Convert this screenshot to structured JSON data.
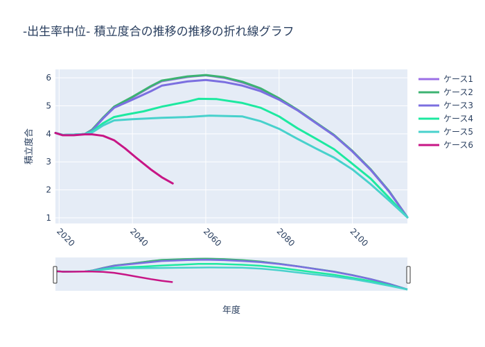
{
  "chart_data": {
    "type": "line",
    "title": "-出生率中位- 積立度合の推移の推移の折れ線グラフ",
    "xlabel": "年度",
    "ylabel": "積立度合",
    "xlim": [
      2019,
      2115
    ],
    "ylim": [
      0.8,
      6.3
    ],
    "xticks": [
      2020,
      2040,
      2060,
      2080,
      2100
    ],
    "yticks": [
      1,
      2,
      3,
      4,
      5,
      6
    ],
    "grid": true,
    "legend_position": "right",
    "range_slider": true,
    "series": [
      {
        "name": "ケース1",
        "color": "#9b6fe6",
        "points": [
          [
            2019,
            4.03
          ],
          [
            2021,
            3.96
          ],
          [
            2024,
            3.97
          ],
          [
            2027,
            3.99
          ],
          [
            2029,
            4.13
          ],
          [
            2032,
            4.55
          ],
          [
            2035,
            4.95
          ],
          [
            2040,
            5.3
          ],
          [
            2045,
            5.68
          ],
          [
            2048,
            5.88
          ],
          [
            2055,
            6.03
          ],
          [
            2060,
            6.09
          ],
          [
            2065,
            6.0
          ],
          [
            2070,
            5.83
          ],
          [
            2075,
            5.6
          ],
          [
            2080,
            5.25
          ],
          [
            2085,
            4.85
          ],
          [
            2090,
            4.4
          ],
          [
            2095,
            3.95
          ],
          [
            2100,
            3.38
          ],
          [
            2105,
            2.72
          ],
          [
            2110,
            1.95
          ],
          [
            2115,
            1.02
          ]
        ]
      },
      {
        "name": "ケース2",
        "color": "#3cb371",
        "points": [
          [
            2019,
            4.03
          ],
          [
            2021,
            3.96
          ],
          [
            2024,
            3.97
          ],
          [
            2027,
            3.99
          ],
          [
            2029,
            4.15
          ],
          [
            2032,
            4.58
          ],
          [
            2035,
            4.97
          ],
          [
            2040,
            5.32
          ],
          [
            2045,
            5.7
          ],
          [
            2048,
            5.9
          ],
          [
            2055,
            6.05
          ],
          [
            2060,
            6.1
          ],
          [
            2065,
            6.02
          ],
          [
            2070,
            5.86
          ],
          [
            2075,
            5.62
          ],
          [
            2080,
            5.27
          ],
          [
            2085,
            4.86
          ],
          [
            2090,
            4.41
          ],
          [
            2095,
            3.96
          ],
          [
            2100,
            3.39
          ],
          [
            2105,
            2.73
          ],
          [
            2110,
            1.96
          ],
          [
            2115,
            1.02
          ]
        ]
      },
      {
        "name": "ケース3",
        "color": "#7b6fe0",
        "points": [
          [
            2019,
            4.03
          ],
          [
            2021,
            3.96
          ],
          [
            2024,
            3.97
          ],
          [
            2027,
            3.99
          ],
          [
            2029,
            4.12
          ],
          [
            2032,
            4.55
          ],
          [
            2035,
            4.93
          ],
          [
            2040,
            5.22
          ],
          [
            2045,
            5.52
          ],
          [
            2048,
            5.72
          ],
          [
            2055,
            5.87
          ],
          [
            2060,
            5.92
          ],
          [
            2065,
            5.85
          ],
          [
            2070,
            5.72
          ],
          [
            2075,
            5.52
          ],
          [
            2080,
            5.22
          ],
          [
            2085,
            4.84
          ],
          [
            2090,
            4.39
          ],
          [
            2095,
            3.94
          ],
          [
            2100,
            3.37
          ],
          [
            2105,
            2.71
          ],
          [
            2110,
            1.94
          ],
          [
            2115,
            1.02
          ]
        ]
      },
      {
        "name": "ケース4",
        "color": "#1de9a0",
        "points": [
          [
            2019,
            4.03
          ],
          [
            2021,
            3.96
          ],
          [
            2024,
            3.97
          ],
          [
            2027,
            3.99
          ],
          [
            2029,
            4.08
          ],
          [
            2032,
            4.38
          ],
          [
            2035,
            4.6
          ],
          [
            2038,
            4.68
          ],
          [
            2043,
            4.8
          ],
          [
            2048,
            4.97
          ],
          [
            2055,
            5.15
          ],
          [
            2058,
            5.25
          ],
          [
            2063,
            5.24
          ],
          [
            2070,
            5.1
          ],
          [
            2075,
            4.93
          ],
          [
            2080,
            4.62
          ],
          [
            2085,
            4.2
          ],
          [
            2090,
            3.83
          ],
          [
            2095,
            3.45
          ],
          [
            2100,
            2.93
          ],
          [
            2105,
            2.4
          ],
          [
            2110,
            1.72
          ],
          [
            2115,
            1.02
          ]
        ]
      },
      {
        "name": "ケース5",
        "color": "#48d1cc",
        "points": [
          [
            2019,
            4.03
          ],
          [
            2021,
            3.96
          ],
          [
            2024,
            3.97
          ],
          [
            2027,
            3.99
          ],
          [
            2029,
            4.05
          ],
          [
            2032,
            4.3
          ],
          [
            2035,
            4.48
          ],
          [
            2040,
            4.52
          ],
          [
            2048,
            4.57
          ],
          [
            2055,
            4.6
          ],
          [
            2061,
            4.65
          ],
          [
            2070,
            4.62
          ],
          [
            2075,
            4.45
          ],
          [
            2080,
            4.18
          ],
          [
            2085,
            3.82
          ],
          [
            2090,
            3.48
          ],
          [
            2095,
            3.15
          ],
          [
            2100,
            2.73
          ],
          [
            2105,
            2.2
          ],
          [
            2110,
            1.62
          ],
          [
            2115,
            1.02
          ]
        ]
      },
      {
        "name": "ケース6",
        "color": "#c71585",
        "points": [
          [
            2019,
            4.03
          ],
          [
            2021,
            3.95
          ],
          [
            2024,
            3.95
          ],
          [
            2027,
            3.98
          ],
          [
            2029,
            3.98
          ],
          [
            2032,
            3.93
          ],
          [
            2035,
            3.77
          ],
          [
            2038,
            3.48
          ],
          [
            2041,
            3.15
          ],
          [
            2045,
            2.73
          ],
          [
            2048,
            2.45
          ],
          [
            2051,
            2.23
          ]
        ]
      }
    ]
  }
}
